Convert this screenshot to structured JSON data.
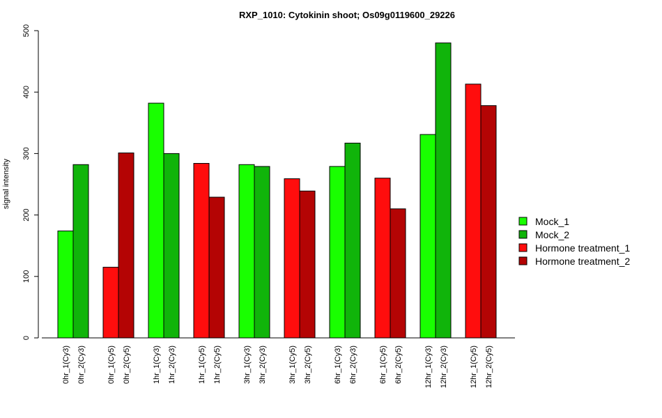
{
  "chart_data": {
    "type": "bar",
    "title": "RXP_1010: Cytokinin shoot; Os09g0119600_29226",
    "xlabel": "",
    "ylabel": "signal intensity",
    "ylim": [
      0,
      500
    ],
    "yticks": [
      0,
      100,
      200,
      300,
      400,
      500
    ],
    "grid": false,
    "legend_position": "right",
    "categories": [
      "0hr_1(Cy3)",
      "0hr_2(Cy3)",
      "0hr_1(Cy5)",
      "0hr_2(Cy5)",
      "1hr_1(Cy3)",
      "1hr_2(Cy3)",
      "1hr_1(Cy5)",
      "1hr_2(Cy5)",
      "3hr_1(Cy3)",
      "3hr_2(Cy3)",
      "3hr_1(Cy5)",
      "3hr_2(Cy5)",
      "6hr_1(Cy3)",
      "6hr_2(Cy3)",
      "6hr_1(Cy5)",
      "6hr_2(Cy5)",
      "12hr_1(Cy3)",
      "12hr_2(Cy3)",
      "12hr_1(Cy5)",
      "12hr_2(Cy5)"
    ],
    "values": [
      174,
      282,
      115,
      301,
      382,
      300,
      284,
      229,
      282,
      279,
      259,
      239,
      279,
      317,
      260,
      210,
      331,
      480,
      413,
      378
    ],
    "bar_series": [
      0,
      1,
      2,
      3,
      0,
      1,
      2,
      3,
      0,
      1,
      2,
      3,
      0,
      1,
      2,
      3,
      0,
      1,
      2,
      3
    ],
    "series": [
      {
        "name": "Mock_1",
        "color": "#19FF00"
      },
      {
        "name": "Mock_2",
        "color": "#10B40A"
      },
      {
        "name": "Hormone treatment_1",
        "color": "#FF0D0D"
      },
      {
        "name": "Hormone treatment_2",
        "color": "#B40404"
      }
    ]
  }
}
